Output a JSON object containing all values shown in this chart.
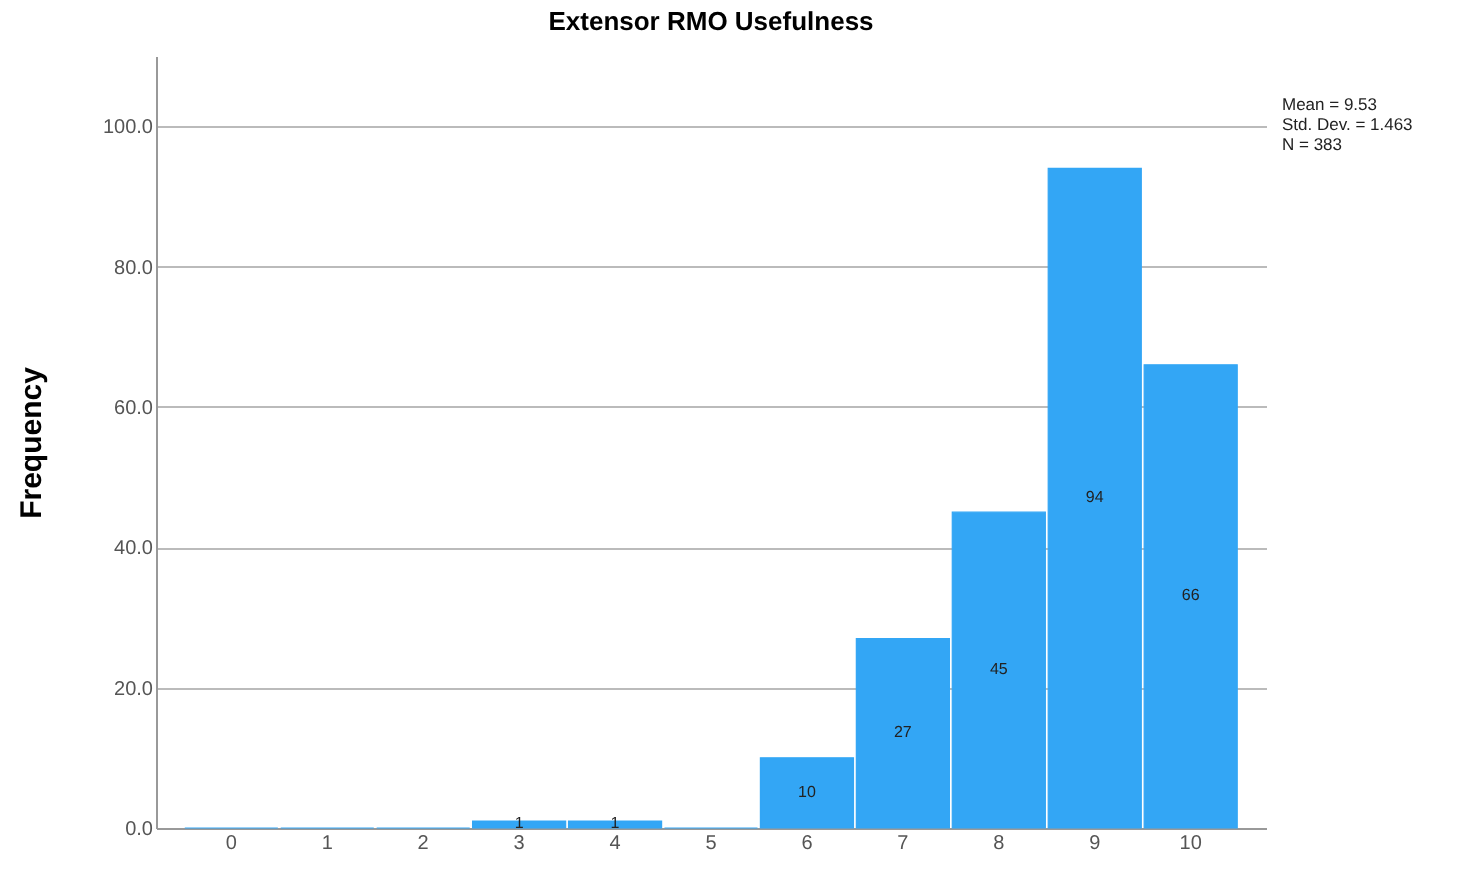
{
  "chart_data": {
    "type": "bar",
    "title": "Extensor RMO Usefulness",
    "ylabel": "Frequency",
    "categories": [
      "0",
      "1",
      "2",
      "3",
      "4",
      "5",
      "6",
      "7",
      "8",
      "9",
      "10"
    ],
    "values": [
      0,
      0,
      0,
      1,
      1,
      0,
      10,
      27,
      45,
      94,
      66
    ],
    "value_labels": [
      null,
      null,
      null,
      "1",
      "1",
      null,
      "10",
      "27",
      "45",
      "94",
      "66"
    ],
    "color": "#33a6f5",
    "ylim": [
      0,
      110
    ],
    "yticks": [
      {
        "value": 0,
        "label": "0.0"
      },
      {
        "value": 20,
        "label": "20.0"
      },
      {
        "value": 40,
        "label": "40.0"
      },
      {
        "value": 60,
        "label": "60.0"
      },
      {
        "value": 80,
        "label": "80.0"
      },
      {
        "value": 100,
        "label": "100.0"
      }
    ],
    "grid": "y",
    "annotations": [
      "Mean = 9.53",
      "Std. Dev. =  1.463",
      "N = 383"
    ]
  }
}
